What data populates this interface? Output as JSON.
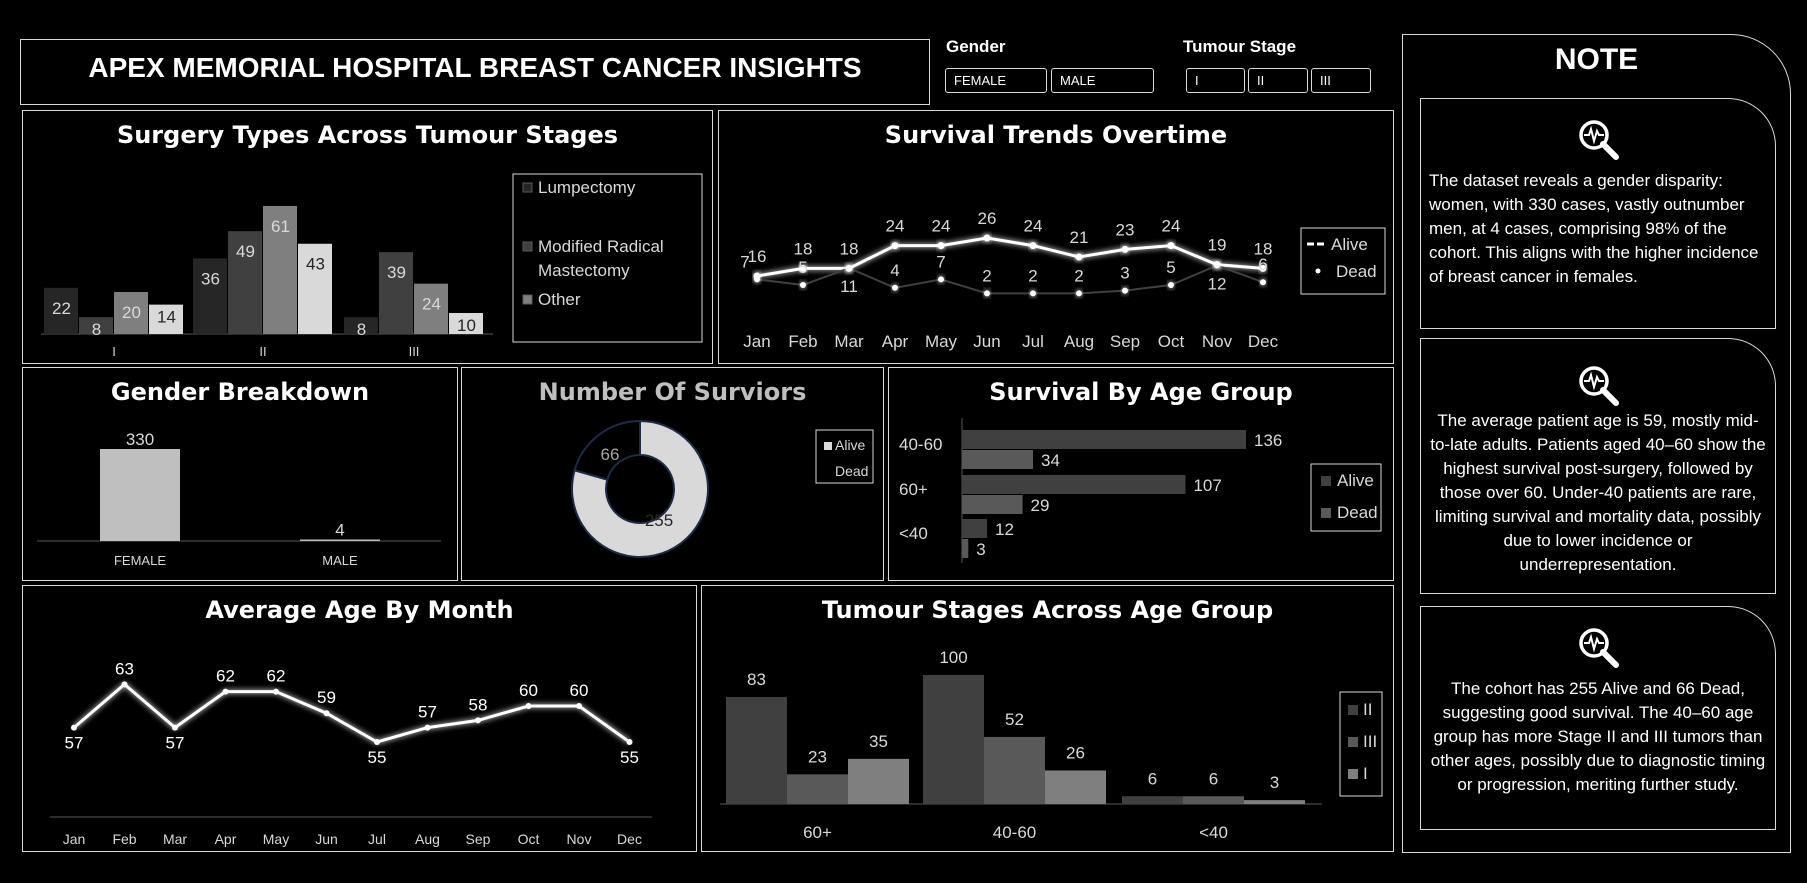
{
  "title": "APEX MEMORIAL HOSPITAL BREAST CANCER INSIGHTS",
  "colors": {
    "background": "#000000",
    "border": "#d9d9d9",
    "text": "#ffffff"
  },
  "slicers": {
    "gender": {
      "label": "Gender",
      "options": [
        "FEMALE",
        "MALE"
      ]
    },
    "stage": {
      "label": "Tumour Stage",
      "options": [
        "I",
        "II",
        "III"
      ]
    }
  },
  "note": {
    "title": "NOTE",
    "cards": [
      {
        "icon": "magnifier-heartbeat-icon",
        "text": "The dataset reveals a gender disparity: women, with 330 cases, vastly outnumber men, at 4 cases, comprising 98% of the cohort. This aligns with the higher incidence of breast cancer in females."
      },
      {
        "icon": "magnifier-heartbeat-icon",
        "text": "The average patient age is 59, mostly mid-to-late adults. Patients aged 40–60 show the highest survival post-surgery, followed by those over 60. Under-40 patients are rare, limiting survival and mortality data, possibly due to lower incidence or underrepresentation."
      },
      {
        "icon": "magnifier-heartbeat-icon",
        "text": "The cohort has 255 Alive and 66 Dead, suggesting good survival. The 40–60 age group has more Stage II and III tumors than other ages, possibly due to diagnostic timing or progression, meriting further study."
      }
    ]
  },
  "chart_data": [
    {
      "id": "surgery",
      "type": "bar",
      "title": "Surgery Types Across Tumour Stages",
      "categories": [
        "I",
        "II",
        "III"
      ],
      "series": [
        {
          "name": "Lumpectomy",
          "color": "#262626",
          "values": [
            22,
            36,
            8
          ]
        },
        {
          "name": "Modified Radical Mastectomy",
          "color": "#404040",
          "values": [
            8,
            49,
            39
          ]
        },
        {
          "name": "Other",
          "color": "#7f7f7f",
          "values": [
            20,
            61,
            24
          ]
        },
        {
          "name": "",
          "color": "#d9d9d9",
          "values": [
            14,
            43,
            10
          ]
        }
      ],
      "legend": "right"
    },
    {
      "id": "survival_trend",
      "type": "line",
      "title": "Survival Trends Overtime",
      "x": [
        "Jan",
        "Feb",
        "Mar",
        "Apr",
        "May",
        "Jun",
        "Jul",
        "Aug",
        "Sep",
        "Oct",
        "Nov",
        "Dec"
      ],
      "series": [
        {
          "name": "Alive",
          "color": "#ffffff",
          "values": [
            16,
            18,
            18,
            24,
            24,
            26,
            24,
            21,
            23,
            24,
            19,
            18
          ]
        },
        {
          "name": "Dead",
          "color": "#404040",
          "values": [
            7,
            5,
            11,
            4,
            7,
            2,
            2,
            2,
            3,
            5,
            12,
            6
          ]
        }
      ],
      "legend": "right"
    },
    {
      "id": "gender",
      "type": "bar",
      "title": "Gender Breakdown",
      "categories": [
        "FEMALE",
        "MALE"
      ],
      "values": [
        330,
        4
      ],
      "color": "#bfbfbf"
    },
    {
      "id": "survivors",
      "type": "pie",
      "title": "Number Of Surviors",
      "slices": [
        {
          "name": "Alive",
          "value": 255,
          "color": "#d9d9d9"
        },
        {
          "name": "Dead",
          "value": 66,
          "color": "#000000"
        }
      ],
      "legend": "right"
    },
    {
      "id": "age_survival",
      "type": "bar",
      "orientation": "horizontal",
      "title": "Survival By Age Group",
      "categories": [
        "40-60",
        "60+",
        "<40"
      ],
      "series": [
        {
          "name": "Alive",
          "color": "#404040",
          "values": [
            136,
            107,
            12
          ]
        },
        {
          "name": "Dead",
          "color": "#595959",
          "values": [
            34,
            29,
            3
          ]
        }
      ],
      "legend": "right"
    },
    {
      "id": "avg_age",
      "type": "line",
      "title": "Average Age By Month",
      "x": [
        "Jan",
        "Feb",
        "Mar",
        "Apr",
        "May",
        "Jun",
        "Jul",
        "Aug",
        "Sep",
        "Oct",
        "Nov",
        "Dec"
      ],
      "values": [
        57,
        63,
        57,
        62,
        62,
        59,
        55,
        57,
        58,
        60,
        60,
        55
      ]
    },
    {
      "id": "stage_age",
      "type": "bar",
      "title": "Tumour Stages Across Age Group",
      "categories": [
        "60+",
        "40-60",
        "<40"
      ],
      "series": [
        {
          "name": "II",
          "color": "#404040",
          "values": [
            83,
            100,
            6
          ]
        },
        {
          "name": "III",
          "color": "#595959",
          "values": [
            23,
            52,
            6
          ]
        },
        {
          "name": "I",
          "color": "#7f7f7f",
          "values": [
            35,
            26,
            3
          ]
        }
      ],
      "legend": "right"
    }
  ]
}
